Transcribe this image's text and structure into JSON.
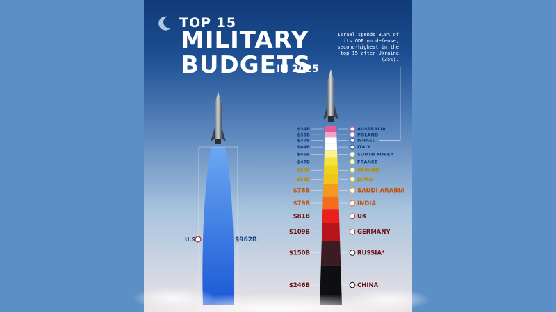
{
  "poster": {
    "title_line1": "TOP 15",
    "title_line2": "MILITARY",
    "title_line3": "BUDGETS",
    "title_suffix": "IN 2025",
    "annotation": "Israel spends 8.8% of its GDP on defense, second-highest in the top 15 after Ukraine (35%)."
  },
  "chart_data": {
    "type": "bar",
    "title": "TOP 15 MILITARY BUDGETS IN 2025",
    "unit": "$B",
    "us": {
      "country": "U.S.",
      "label": "$962B",
      "value": 962
    },
    "series": [
      {
        "country": "AUSTRALIA",
        "label": "$34B",
        "value": 34,
        "color": "#e9589a"
      },
      {
        "country": "POLAND",
        "label": "$35B",
        "value": 35,
        "color": "#f2a3cf"
      },
      {
        "country": "ISRAEL",
        "label": "$37B",
        "value": 37,
        "color": "#ffffff"
      },
      {
        "country": "ITALY",
        "label": "$44B",
        "value": 44,
        "color": "#ffffff"
      },
      {
        "country": "SOUTH KOREA",
        "label": "$45B",
        "value": 45,
        "color": "#fff28a"
      },
      {
        "country": "FRANCE",
        "label": "$47B",
        "value": 47,
        "color": "#f3e43a"
      },
      {
        "country": "UKRAINE",
        "label": "$55B",
        "value": 55,
        "color": "#f0d21a"
      },
      {
        "country": "JAPAN",
        "label": "$58B",
        "value": 58,
        "color": "#f2c41c"
      },
      {
        "country": "SAUDI ARABIA",
        "label": "$78B",
        "value": 78,
        "color": "#f39a1c"
      },
      {
        "country": "INDIA",
        "label": "$79B",
        "value": 79,
        "color": "#f36d1c"
      },
      {
        "country": "UK",
        "label": "$81B",
        "value": 81,
        "color": "#e9201c"
      },
      {
        "country": "GERMANY",
        "label": "$109B",
        "value": 109,
        "color": "#b8141c"
      },
      {
        "country": "RUSSIA*",
        "label": "$150B",
        "value": 150,
        "color": "#3c1c20"
      },
      {
        "country": "CHINA",
        "label": "$246B",
        "value": 246,
        "color": "#0f0f12"
      }
    ]
  }
}
